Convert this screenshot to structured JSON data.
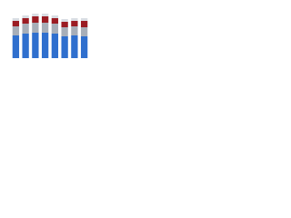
{
  "chart_data": {
    "type": "stacked_bar",
    "categories": [
      null,
      null,
      null,
      null,
      null,
      null,
      null,
      null
    ],
    "series": [
      {
        "color": "#2f6fce",
        "values": [
          25,
          27,
          28,
          28,
          27,
          24,
          25,
          24
        ]
      },
      {
        "color": "#a7aeb8",
        "values": [
          10,
          11,
          11,
          11,
          11,
          10,
          10,
          10
        ]
      },
      {
        "color": "#9b1c23",
        "values": [
          6,
          6,
          7,
          7,
          6,
          6,
          6,
          7
        ]
      },
      {
        "color": "#d9dde3",
        "values": [
          3,
          3,
          3,
          3,
          3,
          3,
          3,
          3
        ]
      }
    ],
    "ylim": [
      0,
      50
    ]
  }
}
